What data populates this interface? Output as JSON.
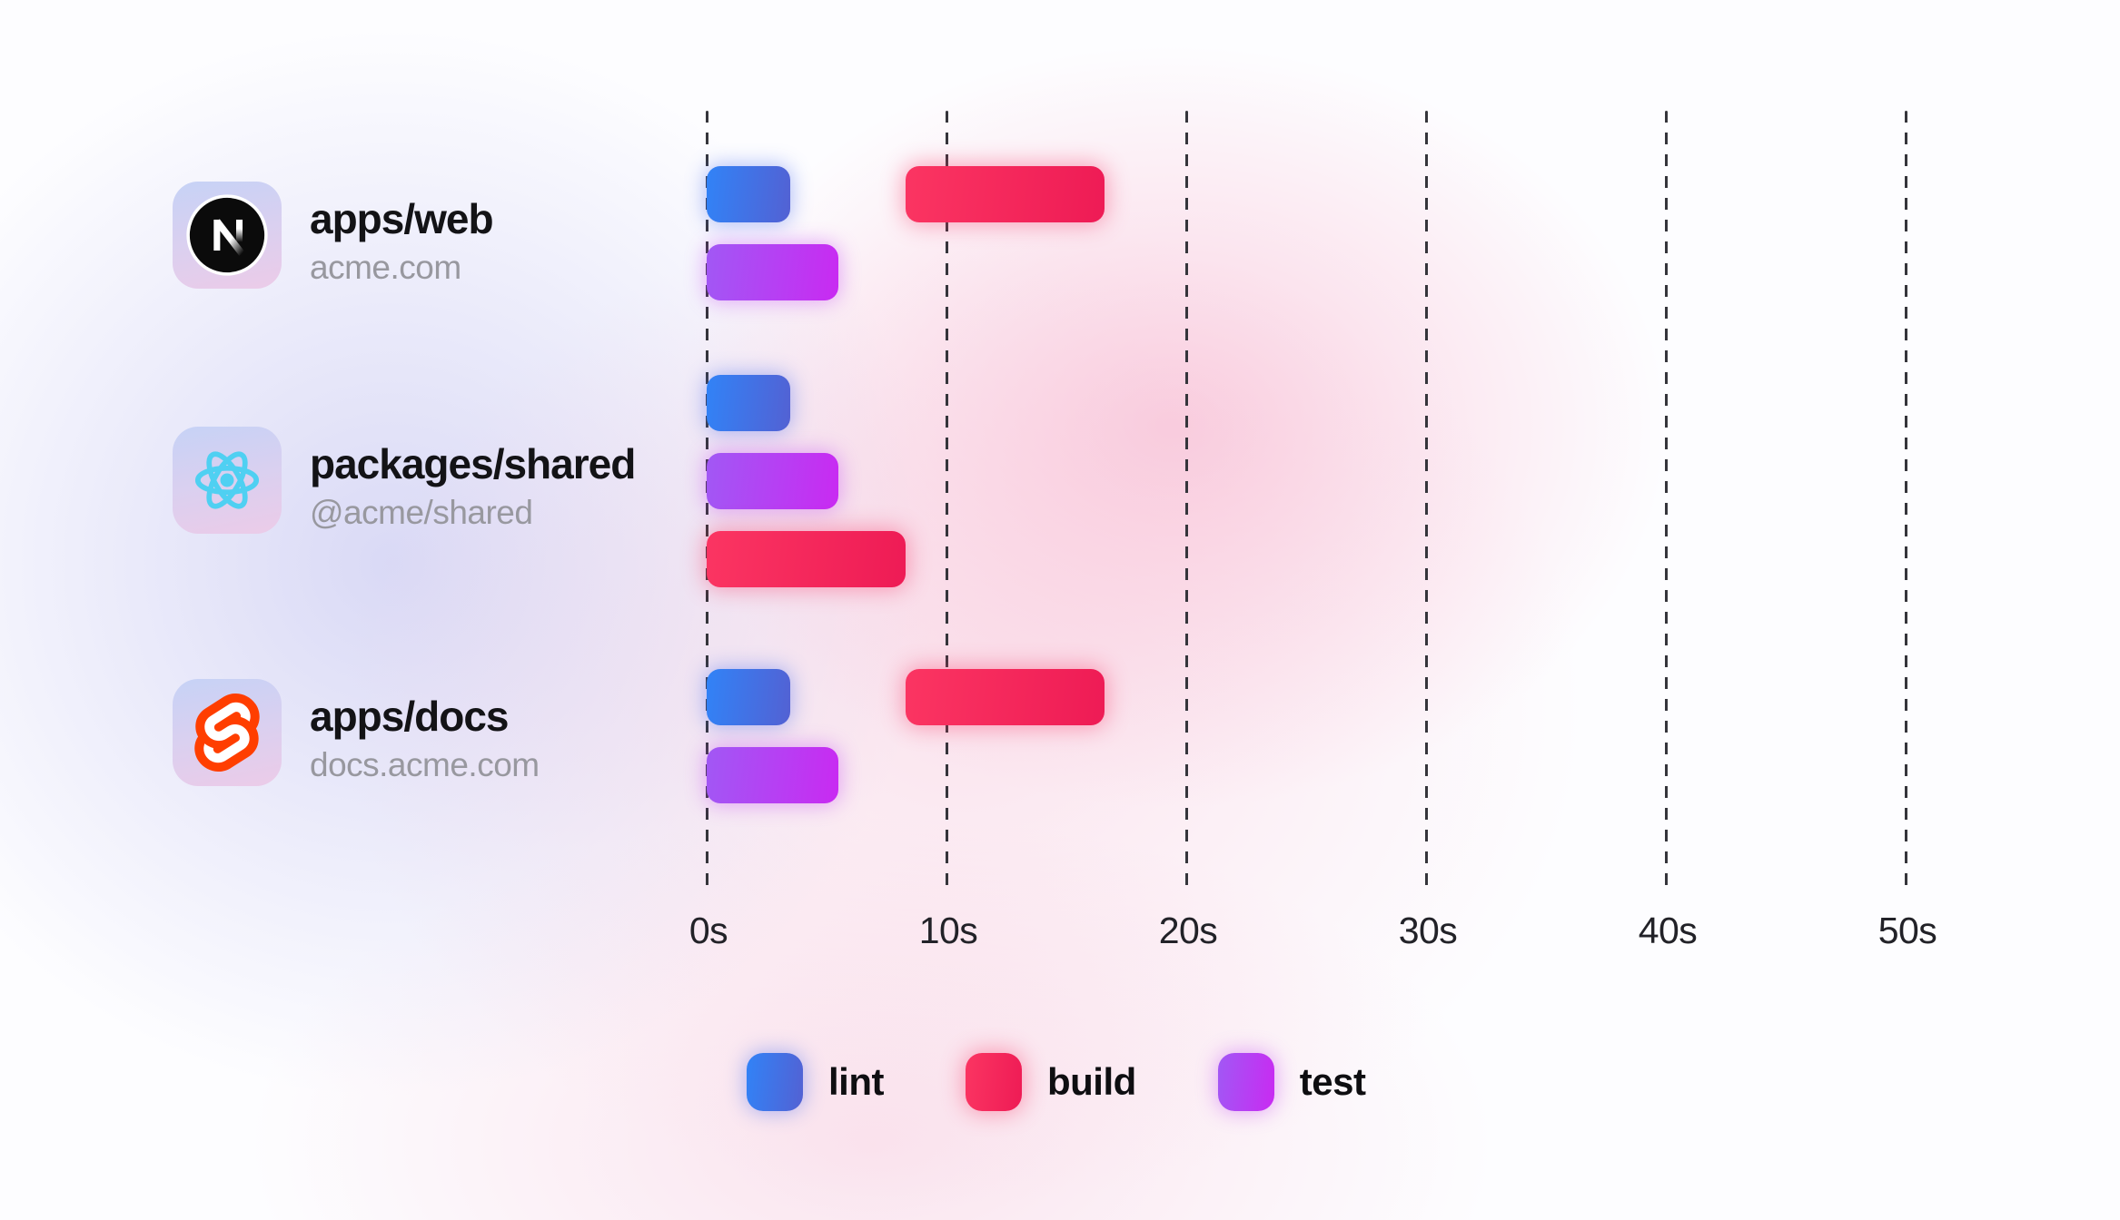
{
  "chart_data": {
    "type": "bar",
    "variant": "gantt-task-timeline",
    "title": "",
    "x_axis": {
      "unit": "seconds",
      "ticks": [
        "0s",
        "10s",
        "20s",
        "30s",
        "40s",
        "50s"
      ],
      "tick_values": [
        0,
        10,
        20,
        30,
        40,
        50
      ],
      "min": 0,
      "max": 50,
      "gridlines": "dashed-vertical"
    },
    "tasks": [
      "lint",
      "build",
      "test"
    ],
    "rows": [
      {
        "package": "apps/web",
        "domain": "acme.com",
        "icon": "nextjs-logo",
        "tracks": [
          [
            {
              "task": "lint",
              "start_s": 0,
              "end_s": 3.5
            },
            {
              "task": "build",
              "start_s": 8.3,
              "end_s": 16.6
            }
          ],
          [
            {
              "task": "test",
              "start_s": 0,
              "end_s": 5.5
            }
          ]
        ]
      },
      {
        "package": "packages/shared",
        "domain": "@acme/shared",
        "icon": "react-logo",
        "tracks": [
          [
            {
              "task": "lint",
              "start_s": 0,
              "end_s": 3.5
            }
          ],
          [
            {
              "task": "test",
              "start_s": 0,
              "end_s": 5.5
            }
          ],
          [
            {
              "task": "build",
              "start_s": 0,
              "end_s": 8.3
            }
          ]
        ]
      },
      {
        "package": "apps/docs",
        "domain": "docs.acme.com",
        "icon": "svelte-logo",
        "tracks": [
          [
            {
              "task": "lint",
              "start_s": 0,
              "end_s": 3.5
            },
            {
              "task": "build",
              "start_s": 8.3,
              "end_s": 16.6
            }
          ],
          [
            {
              "task": "test",
              "start_s": 0,
              "end_s": 5.5
            }
          ]
        ]
      }
    ]
  },
  "legend": {
    "items": [
      {
        "label": "lint",
        "task": "lint"
      },
      {
        "label": "build",
        "task": "build"
      },
      {
        "label": "test",
        "task": "test"
      }
    ]
  },
  "colors": {
    "lint-from": "#3183f7",
    "lint-to": "#5361d3",
    "build-from": "#fb3562",
    "build-to": "#ee1b55",
    "test-from": "#a158f4",
    "test-to": "#c92af2",
    "tile-from": "#c6d2f6",
    "tile-to": "#eccbe8",
    "react-blue": "#4fd0f2",
    "svelte-orange": "#ff3e00",
    "next-black": "#0b0b0b",
    "grid-line": "#35353b",
    "title-text": "#131316",
    "subtitle-text": "#98989f",
    "axis-text": "#222228"
  }
}
